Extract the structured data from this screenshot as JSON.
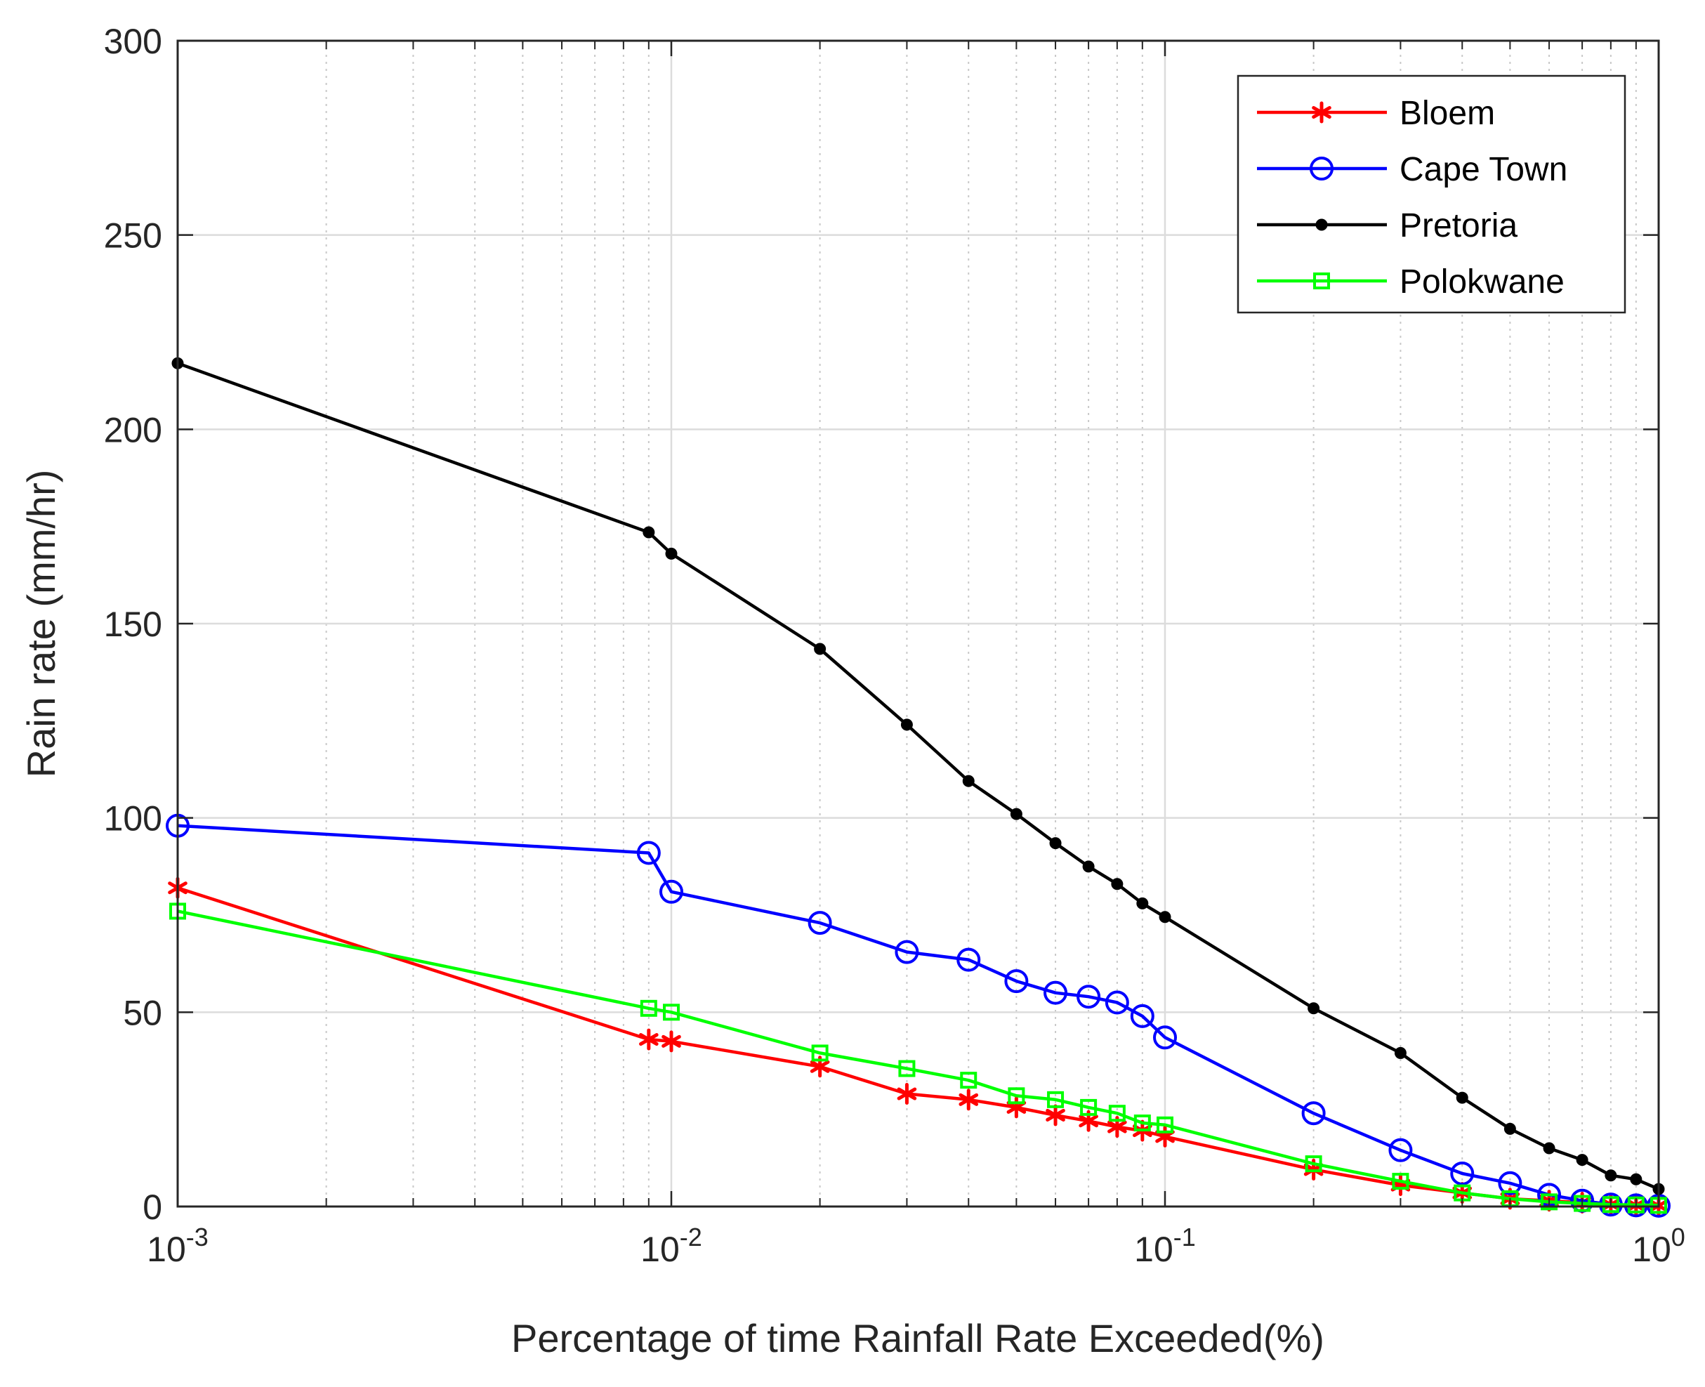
{
  "chart_data": {
    "type": "line",
    "title": "",
    "xlabel": "Percentage of time Rainfall Rate Exceeded(%)",
    "ylabel": "Rain rate (mm/hr)",
    "xscale": "log",
    "xlim": [
      0.001,
      1
    ],
    "ylim": [
      0,
      300
    ],
    "yticks": [
      "0",
      "50",
      "100",
      "150",
      "200",
      "250",
      "300"
    ],
    "xticks": [
      {
        "base": "10",
        "exp": "-3"
      },
      {
        "base": "10",
        "exp": "-2"
      },
      {
        "base": "10",
        "exp": "-1"
      },
      {
        "base": "10",
        "exp": "0"
      }
    ],
    "grid": true,
    "legend_position": "top-right",
    "series": [
      {
        "name": "Bloem",
        "color": "#ff0000",
        "marker": "asterisk",
        "x": [
          0.001,
          0.009,
          0.01,
          0.02,
          0.03,
          0.04,
          0.05,
          0.06,
          0.07,
          0.08,
          0.09,
          0.1,
          0.2,
          0.3,
          0.4,
          0.5,
          0.6,
          0.7,
          0.8,
          0.9,
          1
        ],
        "y": [
          82,
          43,
          42.5,
          36,
          29,
          27.5,
          25.5,
          23.5,
          22,
          20.5,
          19.5,
          18,
          9.5,
          5.5,
          3.5,
          2,
          1.5,
          1,
          0.5,
          0.3,
          0.2
        ]
      },
      {
        "name": "Cape Town",
        "color": "#0000ff",
        "marker": "circle",
        "x": [
          0.001,
          0.009,
          0.01,
          0.02,
          0.03,
          0.04,
          0.05,
          0.06,
          0.07,
          0.08,
          0.09,
          0.1,
          0.2,
          0.3,
          0.4,
          0.5,
          0.6,
          0.7,
          0.8,
          0.9,
          1
        ],
        "y": [
          98,
          91,
          81,
          73,
          65.5,
          63.5,
          58,
          55,
          54,
          52.5,
          49,
          43.5,
          24,
          14.5,
          8.5,
          6,
          3,
          1.5,
          0.5,
          0.3,
          0.2
        ]
      },
      {
        "name": "Pretoria",
        "color": "#000000",
        "marker": "dot",
        "x": [
          0.001,
          0.009,
          0.01,
          0.02,
          0.03,
          0.04,
          0.05,
          0.06,
          0.07,
          0.08,
          0.09,
          0.1,
          0.2,
          0.3,
          0.4,
          0.5,
          0.6,
          0.7,
          0.8,
          0.9,
          1
        ],
        "y": [
          217,
          173.5,
          168,
          143.5,
          124,
          109.5,
          101,
          93.5,
          87.5,
          83,
          78,
          74.5,
          51,
          39.5,
          28,
          20,
          15,
          12,
          8,
          7,
          4.5
        ]
      },
      {
        "name": "Polokwane",
        "color": "#00ff00",
        "marker": "square",
        "x": [
          0.001,
          0.009,
          0.01,
          0.02,
          0.03,
          0.04,
          0.05,
          0.06,
          0.07,
          0.08,
          0.09,
          0.1,
          0.2,
          0.3,
          0.4,
          0.5,
          0.6,
          0.7,
          0.8,
          0.9,
          1
        ],
        "y": [
          76,
          51,
          50,
          39.5,
          35.5,
          32.5,
          28.5,
          27.5,
          25.5,
          24,
          21.5,
          21,
          11,
          6.5,
          3.5,
          2,
          1.2,
          0.8,
          0.5,
          0.4,
          0.3
        ]
      }
    ]
  }
}
